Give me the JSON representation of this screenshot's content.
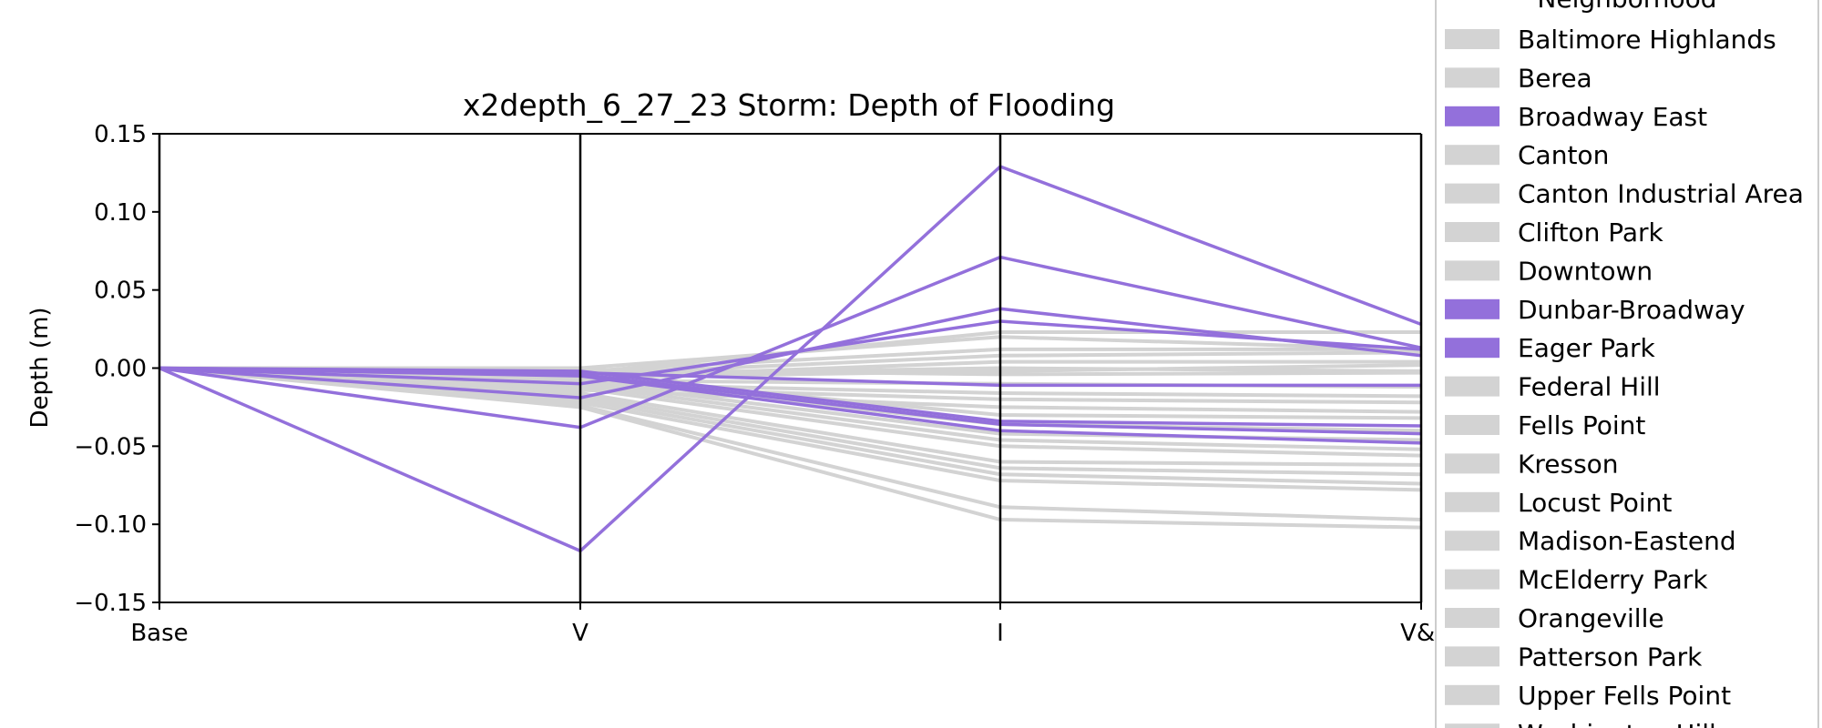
{
  "chart_data": {
    "type": "line",
    "subtype": "parallel-coordinates",
    "title": "x2depth_6_27_23 Storm: Depth of Flooding",
    "ylabel": "Depth (m)",
    "xlabel": "",
    "categories": [
      "Base",
      "V",
      "I",
      "V&I"
    ],
    "ylim": [
      -0.15,
      0.15
    ],
    "yticks": [
      "0.15",
      "0.10",
      "0.05",
      "0.00",
      "−0.05",
      "−0.10",
      "−0.15"
    ],
    "ytick_values": [
      0.15,
      0.1,
      0.05,
      0.0,
      -0.05,
      -0.1,
      -0.15
    ],
    "grid": false,
    "legend": {
      "title": "Neighborhood",
      "placement": "right",
      "entries": [
        {
          "label": "Baltimore Highlands",
          "color": "#d3d3d3"
        },
        {
          "label": "Berea",
          "color": "#d3d3d3"
        },
        {
          "label": "Broadway East",
          "color": "#9370db"
        },
        {
          "label": "Canton",
          "color": "#d3d3d3"
        },
        {
          "label": "Canton Industrial Area",
          "color": "#d3d3d3"
        },
        {
          "label": "Clifton Park",
          "color": "#d3d3d3"
        },
        {
          "label": "Downtown",
          "color": "#d3d3d3"
        },
        {
          "label": "Dunbar-Broadway",
          "color": "#9370db"
        },
        {
          "label": "Eager Park",
          "color": "#9370db"
        },
        {
          "label": "Federal Hill",
          "color": "#d3d3d3"
        },
        {
          "label": "Fells Point",
          "color": "#d3d3d3"
        },
        {
          "label": "Kresson",
          "color": "#d3d3d3"
        },
        {
          "label": "Locust Point",
          "color": "#d3d3d3"
        },
        {
          "label": "Madison-Eastend",
          "color": "#d3d3d3"
        },
        {
          "label": "McElderry Park",
          "color": "#d3d3d3"
        },
        {
          "label": "Orangeville",
          "color": "#d3d3d3"
        },
        {
          "label": "Patterson Park",
          "color": "#d3d3d3"
        },
        {
          "label": "Upper Fells Point",
          "color": "#d3d3d3"
        },
        {
          "label": "Washington Hill",
          "color": "#d3d3d3"
        }
      ]
    },
    "colors": {
      "highlight": "#9370db",
      "other": "#d3d3d3"
    },
    "series_other": [
      {
        "values": [
          0,
          -0.002,
          0.012,
          0.012
        ]
      },
      {
        "values": [
          0,
          -0.004,
          0.008,
          0.01
        ]
      },
      {
        "values": [
          0,
          -0.006,
          0.004,
          0.004
        ]
      },
      {
        "values": [
          0,
          0.0,
          0.02,
          0.012
        ]
      },
      {
        "values": [
          0,
          -0.003,
          0.023,
          0.023
        ]
      },
      {
        "values": [
          0,
          -0.001,
          -0.004,
          -0.003
        ]
      },
      {
        "values": [
          0,
          -0.008,
          -0.01,
          -0.012
        ]
      },
      {
        "values": [
          0,
          -0.01,
          -0.016,
          -0.018
        ]
      },
      {
        "values": [
          0,
          -0.012,
          -0.02,
          -0.022
        ]
      },
      {
        "values": [
          0,
          -0.014,
          -0.025,
          -0.028
        ]
      },
      {
        "values": [
          0,
          -0.005,
          -0.03,
          -0.032
        ]
      },
      {
        "values": [
          0,
          -0.007,
          -0.036,
          -0.04
        ]
      },
      {
        "values": [
          0,
          -0.009,
          -0.042,
          -0.046
        ]
      },
      {
        "values": [
          0,
          -0.011,
          -0.046,
          -0.052
        ]
      },
      {
        "values": [
          0,
          -0.013,
          -0.05,
          -0.056
        ]
      },
      {
        "values": [
          0,
          -0.016,
          -0.06,
          -0.062
        ]
      },
      {
        "values": [
          0,
          -0.018,
          -0.064,
          -0.068
        ]
      },
      {
        "values": [
          0,
          -0.02,
          -0.068,
          -0.074
        ]
      },
      {
        "values": [
          0,
          -0.022,
          -0.072,
          -0.078
        ]
      },
      {
        "values": [
          0,
          -0.024,
          -0.089,
          -0.097
        ]
      },
      {
        "values": [
          0,
          -0.025,
          -0.097,
          -0.102
        ]
      },
      {
        "values": [
          0,
          -0.004,
          0.0,
          -0.002
        ]
      },
      {
        "values": [
          0,
          -0.006,
          -0.002,
          0.002
        ]
      }
    ],
    "series_highlight": [
      {
        "values": [
          0,
          -0.117,
          0.129,
          0.028
        ]
      },
      {
        "values": [
          0,
          -0.038,
          0.071,
          0.013
        ]
      },
      {
        "values": [
          0,
          -0.019,
          0.038,
          0.008
        ]
      },
      {
        "values": [
          0,
          -0.01,
          0.03,
          0.012
        ]
      },
      {
        "values": [
          0,
          -0.003,
          -0.011,
          -0.011
        ]
      },
      {
        "values": [
          0,
          -0.002,
          -0.034,
          -0.037
        ]
      },
      {
        "values": [
          0,
          -0.004,
          -0.036,
          -0.042
        ]
      },
      {
        "values": [
          0,
          -0.005,
          -0.04,
          -0.048
        ]
      }
    ]
  }
}
